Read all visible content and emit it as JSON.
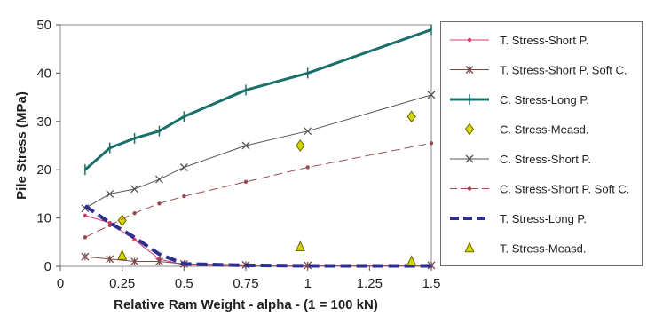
{
  "chart_data": {
    "type": "line",
    "title": "",
    "xlabel": "Relative Ram Weight - alpha - (1 = 100 kN)",
    "ylabel": "Pile Stress (MPa)",
    "xlim": [
      0,
      1.5
    ],
    "ylim": [
      0,
      50
    ],
    "xticks": [
      0,
      0.25,
      0.5,
      0.75,
      1,
      1.25,
      1.5
    ],
    "xtick_labels": [
      "0",
      "0.25",
      "0.5",
      "0.75",
      "1",
      "1.25",
      "1.5"
    ],
    "yticks": [
      0,
      10,
      20,
      30,
      40,
      50
    ],
    "ytick_labels": [
      "0",
      "10",
      "20",
      "30",
      "40",
      "50"
    ],
    "grid": false,
    "legend_position": "right",
    "series": [
      {
        "name": "T. Stress-Short P.",
        "color": "#d63a6a",
        "line": "solid",
        "width": 1,
        "marker": "dot",
        "points": [
          [
            0.1,
            10.5
          ],
          [
            0.2,
            9
          ],
          [
            0.3,
            5.5
          ],
          [
            0.4,
            1.5
          ],
          [
            0.5,
            0.3
          ],
          [
            0.75,
            0.1
          ],
          [
            1.0,
            0.1
          ],
          [
            1.5,
            0.1
          ]
        ]
      },
      {
        "name": "T. Stress-Short P. Soft C.",
        "color": "#7a4a4a",
        "line": "solid",
        "width": 1,
        "marker": "star",
        "points": [
          [
            0.1,
            2
          ],
          [
            0.2,
            1.5
          ],
          [
            0.3,
            1
          ],
          [
            0.4,
            1
          ],
          [
            0.5,
            0.5
          ],
          [
            0.75,
            0.3
          ],
          [
            1.0,
            0.2
          ],
          [
            1.5,
            0.2
          ]
        ]
      },
      {
        "name": "C. Stress-Long P.",
        "color": "#19706b",
        "line": "solid",
        "width": 3,
        "marker": "plus",
        "points": [
          [
            0.1,
            20
          ],
          [
            0.2,
            24.5
          ],
          [
            0.3,
            26.5
          ],
          [
            0.4,
            28
          ],
          [
            0.5,
            31
          ],
          [
            0.75,
            36.5
          ],
          [
            1.0,
            40
          ],
          [
            1.5,
            49
          ]
        ]
      },
      {
        "name": "C. Stress-Measd.",
        "color": "#d4d400",
        "line": "none",
        "width": 0,
        "marker": "diamond",
        "points": [
          [
            0.25,
            9.5
          ],
          [
            0.97,
            25
          ],
          [
            1.42,
            31
          ]
        ]
      },
      {
        "name": "C. Stress-Short P.",
        "color": "#555555",
        "line": "solid",
        "width": 1,
        "marker": "x",
        "points": [
          [
            0.1,
            12
          ],
          [
            0.2,
            15
          ],
          [
            0.3,
            16
          ],
          [
            0.4,
            18
          ],
          [
            0.5,
            20.5
          ],
          [
            0.75,
            25
          ],
          [
            1.0,
            28
          ],
          [
            1.5,
            35.5
          ]
        ]
      },
      {
        "name": "C. Stress-Short P. Soft C.",
        "color": "#9a4a4a",
        "line": "dashed-long",
        "width": 1,
        "marker": "dot",
        "points": [
          [
            0.1,
            6
          ],
          [
            0.2,
            8.5
          ],
          [
            0.3,
            11
          ],
          [
            0.4,
            13
          ],
          [
            0.5,
            14.5
          ],
          [
            0.75,
            17.5
          ],
          [
            1.0,
            20.5
          ],
          [
            1.5,
            25.5
          ]
        ]
      },
      {
        "name": "T. Stress-Long P.",
        "color": "#2e2e8f",
        "line": "dashed-thick",
        "width": 4,
        "marker": "none",
        "points": [
          [
            0.1,
            12.5
          ],
          [
            0.2,
            9
          ],
          [
            0.3,
            6
          ],
          [
            0.4,
            2.5
          ],
          [
            0.5,
            0.5
          ],
          [
            0.75,
            0.2
          ],
          [
            1.0,
            0.1
          ],
          [
            1.5,
            0.1
          ]
        ]
      },
      {
        "name": "T. Stress-Measd.",
        "color": "#d4d400",
        "line": "none",
        "width": 0,
        "marker": "triangle",
        "points": [
          [
            0.25,
            2.2
          ],
          [
            0.97,
            4
          ],
          [
            1.42,
            1
          ]
        ]
      }
    ]
  }
}
